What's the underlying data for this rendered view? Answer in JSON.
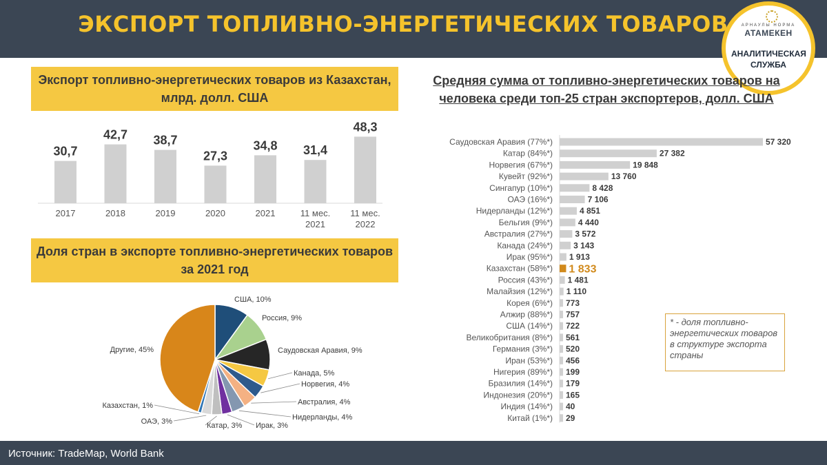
{
  "header": {
    "title": "ЭКСПОРТ ТОПЛИВНО-ЭНЕРГЕТИЧЕСКИХ ТОВАРОВ"
  },
  "logo": {
    "small": "АРНАУЛЫ НОРМА",
    "brand": "АТАМЕКЕН",
    "service": "АНАЛИТИЧЕСКАЯ СЛУЖБА"
  },
  "footer": {
    "source": "Источник: TradeMap, World Bank"
  },
  "footnote": {
    "text": "* - доля топливно-энергетических товаров в структуре экспорта страны"
  },
  "colors": {
    "header": "#3b4654",
    "accent": "#f5c842",
    "bar": "#d0d0d0",
    "highlight": "#d18a1c"
  },
  "chart_data": [
    {
      "type": "bar",
      "title": "Экспорт топливно-энергетических товаров из Казахстан, млрд. долл. США",
      "categories": [
        "2017",
        "2018",
        "2019",
        "2020",
        "2021",
        "11 мес. 2021",
        "11 мес. 2022"
      ],
      "values": [
        30.7,
        42.7,
        38.7,
        27.3,
        34.8,
        31.4,
        48.3
      ],
      "labels": [
        "30,7",
        "42,7",
        "38,7",
        "27,3",
        "34,8",
        "31,4",
        "48,3"
      ],
      "ylim": [
        0,
        50
      ]
    },
    {
      "type": "pie",
      "title": "Доля стран в экспорте топливно-энергетических товаров за 2021 год",
      "slices": [
        {
          "name": "США",
          "value": 10,
          "label": "США, 10%",
          "color": "#1f4e79"
        },
        {
          "name": "Россия",
          "value": 9,
          "label": "Россия, 9%",
          "color": "#a9d18e"
        },
        {
          "name": "Саудовская Аравия",
          "value": 9,
          "label": "Саудовская Аравия, 9%",
          "color": "#262626"
        },
        {
          "name": "Канада",
          "value": 5,
          "label": "Канада, 5%",
          "color": "#f5c842"
        },
        {
          "name": "Норвегия",
          "value": 4,
          "label": "Норвегия, 4%",
          "color": "#2e5a8c"
        },
        {
          "name": "Австралия",
          "value": 4,
          "label": "Австралия, 4%",
          "color": "#f4b183"
        },
        {
          "name": "Нидерланды",
          "value": 4,
          "label": "Нидерланды, 4%",
          "color": "#8497b0"
        },
        {
          "name": "Ирак",
          "value": 3,
          "label": "Ирак, 3%",
          "color": "#7030a0"
        },
        {
          "name": "Катар",
          "value": 3,
          "label": "Катар, 3%",
          "color": "#bfbfbf"
        },
        {
          "name": "ОАЭ",
          "value": 3,
          "label": "ОАЭ, 3%",
          "color": "#d9d9d9"
        },
        {
          "name": "Казахстан",
          "value": 1,
          "label": "Казахстан, 1%",
          "color": "#2f75b5"
        },
        {
          "name": "Другие",
          "value": 45,
          "label": "Другие, 45%",
          "color": "#d8861a"
        }
      ]
    },
    {
      "type": "bar",
      "orientation": "horizontal",
      "title": "Средняя сумма от топливно-энергетических товаров на человека среди топ-25 стран экспортеров, долл. США",
      "categories": [
        "Саудовская Аравия (77%*)",
        "Катар (84%*)",
        "Норвегия (67%*)",
        "Кувейт (92%*)",
        "Сингапур (10%*)",
        "ОАЭ (16%*)",
        "Нидерланды (12%*)",
        "Бельгия (9%*)",
        "Австралия (27%*)",
        "Канада (24%*)",
        "Ирак (95%*)",
        "Казахстан (58%*)",
        "Россия (43%*)",
        "Малайзия (12%*)",
        "Корея (6%*)",
        "Алжир (88%*)",
        "США (14%*)",
        "Великобритания (8%*)",
        "Германия (3%*)",
        "Иран (53%*)",
        "Нигерия (89%*)",
        "Бразилия (14%*)",
        "Индонезия (20%*)",
        "Индия (14%*)",
        "Китай (1%*)"
      ],
      "values": [
        57320,
        27382,
        19848,
        13760,
        8428,
        7106,
        4851,
        4440,
        3572,
        3143,
        1913,
        1833,
        1481,
        1110,
        773,
        757,
        722,
        561,
        520,
        456,
        199,
        179,
        165,
        40,
        29
      ],
      "labels": [
        "57 320",
        "27 382",
        "19 848",
        "13 760",
        "8 428",
        "7 106",
        "4 851",
        "4 440",
        "3 572",
        "3 143",
        "1 913",
        "1 833",
        "1 481",
        "1 110",
        "773",
        "757",
        "722",
        "561",
        "520",
        "456",
        "199",
        "179",
        "165",
        "40",
        "29"
      ],
      "highlight": "Казахстан (58%*)"
    }
  ]
}
